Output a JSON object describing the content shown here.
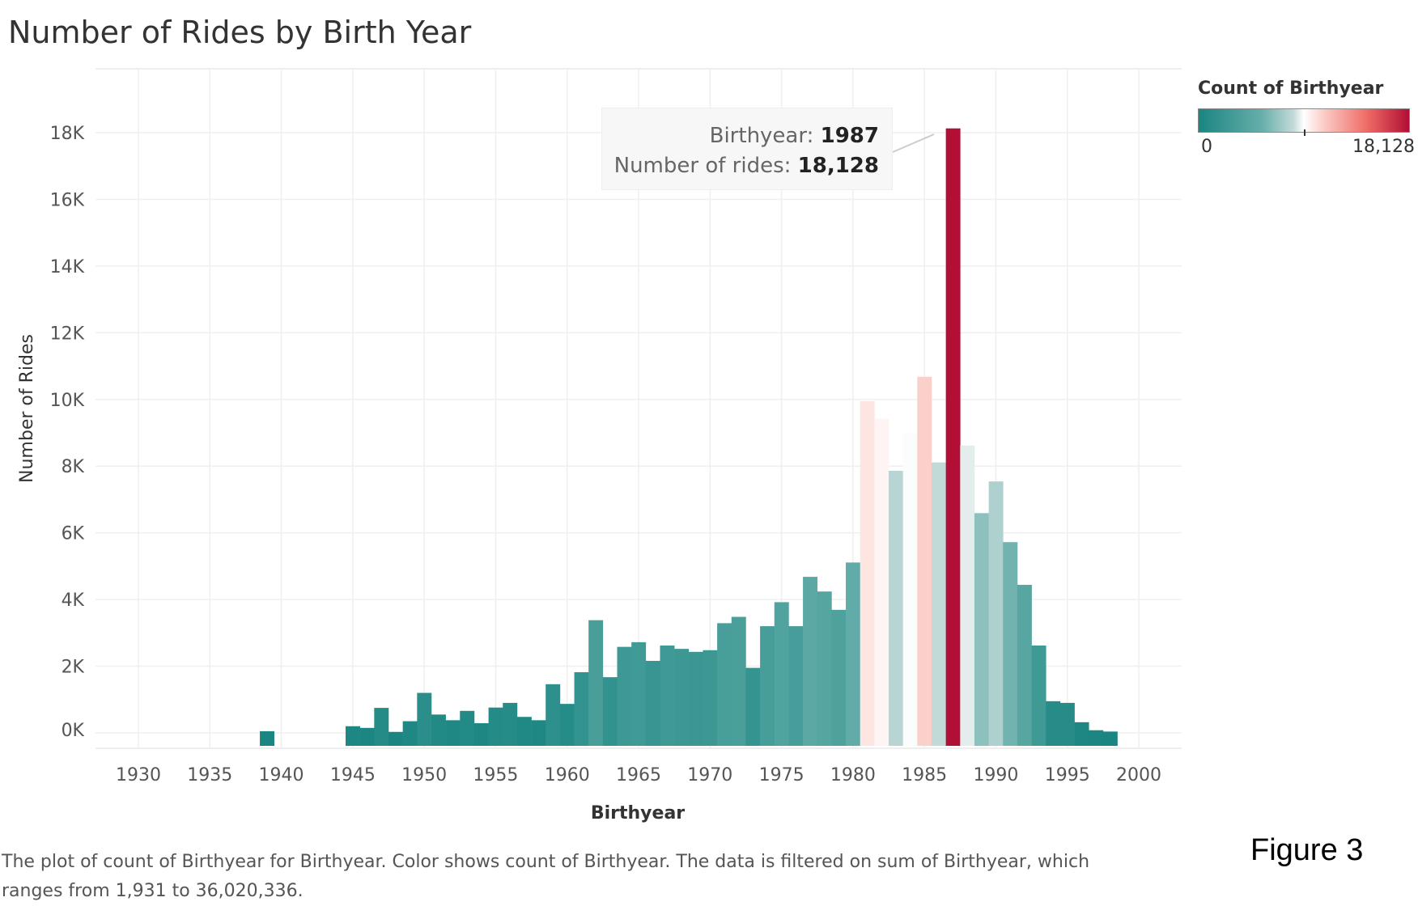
{
  "title": "Number of Rides by Birth Year",
  "legend": {
    "title": "Count of Birthyear",
    "min_label": "0",
    "max_label": "18,128",
    "colors": [
      "#1a8581",
      "#66aeaa",
      "#c3dad8",
      "#ffffff",
      "#fbc9c4",
      "#ef6b66",
      "#b10f35"
    ]
  },
  "tooltip": {
    "label1": "Birthyear:",
    "value1": "1987",
    "label2": "Number of rides:",
    "value2": "18,128"
  },
  "caption": "The plot of count of Birthyear for Birthyear.  Color shows count of Birthyear. The data is filtered on sum of Birthyear, which ranges from 1,931 to 36,020,336.",
  "figure_label": "Figure 3",
  "chart_data": {
    "type": "bar",
    "xlabel": "Birthyear",
    "ylabel": "Number of Rides",
    "x_ticks": [
      1930,
      1935,
      1940,
      1945,
      1950,
      1955,
      1960,
      1965,
      1970,
      1975,
      1980,
      1985,
      1990,
      1995,
      2000
    ],
    "y_ticks": [
      0,
      2000,
      4000,
      6000,
      8000,
      10000,
      12000,
      14000,
      16000,
      18000
    ],
    "y_tick_labels": [
      "0K",
      "2K",
      "4K",
      "6K",
      "8K",
      "10K",
      "12K",
      "14K",
      "16K",
      "18K"
    ],
    "xlim": [
      1927,
      2003
    ],
    "ylim": [
      0,
      19000
    ],
    "grid": true,
    "categories": [
      1939,
      1945,
      1946,
      1947,
      1948,
      1949,
      1950,
      1951,
      1952,
      1953,
      1954,
      1955,
      1956,
      1957,
      1958,
      1959,
      1960,
      1961,
      1962,
      1963,
      1964,
      1965,
      1966,
      1967,
      1968,
      1969,
      1970,
      1971,
      1972,
      1973,
      1974,
      1975,
      1976,
      1977,
      1978,
      1979,
      1980,
      1981,
      1982,
      1983,
      1984,
      1985,
      1986,
      1987,
      1988,
      1989,
      1990,
      1991,
      1992,
      1993,
      1994,
      1995,
      1996,
      1997,
      1998
    ],
    "values": [
      50,
      200,
      150,
      750,
      30,
      350,
      1200,
      550,
      380,
      660,
      290,
      760,
      900,
      480,
      380,
      1460,
      870,
      1820,
      3380,
      1670,
      2580,
      2720,
      2160,
      2620,
      2520,
      2430,
      2480,
      3290,
      3480,
      1950,
      3200,
      3920,
      3200,
      4680,
      4240,
      3690,
      5110,
      9950,
      9420,
      7860,
      9000,
      10680,
      8110,
      18128,
      8620,
      6590,
      7540,
      5720,
      4440,
      2620,
      950,
      900,
      320,
      80,
      40
    ]
  }
}
